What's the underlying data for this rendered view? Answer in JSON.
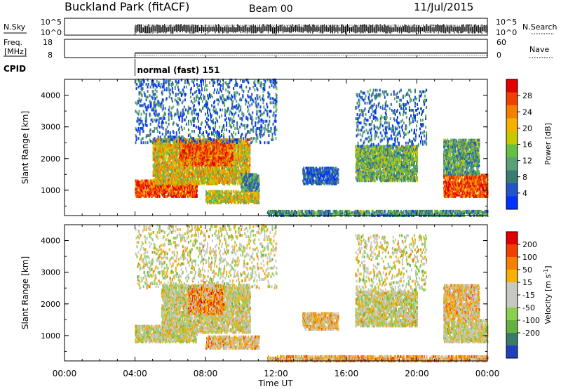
{
  "header": {
    "title": "Buckland Park (fitACF)",
    "beam": "Beam 00",
    "date": "11/Jul/2015"
  },
  "strips": {
    "nsky": {
      "label": "N.Sky",
      "ticks": [
        "10^5",
        "10^0"
      ],
      "right_label": "N.Search",
      "right_ticks": [
        "10^5",
        "10^0"
      ]
    },
    "freq": {
      "label_top": "Freq.",
      "label_bottom": "[MHz]",
      "ticks": [
        "18",
        "8"
      ],
      "right_label": "Nave",
      "right_ticks": [
        "60",
        "0"
      ],
      "freq_mhz": 10.5,
      "nave_level": 8
    },
    "cpid": {
      "label": "CPID",
      "text": "normal (fast) 151",
      "start_hour": 4
    }
  },
  "chart_data": [
    {
      "type": "heatmap",
      "name": "power",
      "ylabel": "Slant Range [km]",
      "ylim": [
        200,
        4500
      ],
      "yticks": [
        "1000",
        "2000",
        "3000",
        "4000"
      ],
      "xlim": [
        0,
        24
      ],
      "colorbar": {
        "label": "Power [dB]",
        "ticks": [
          "4",
          "8",
          "12",
          "16",
          "20",
          "24",
          "28"
        ],
        "range": [
          0,
          32
        ],
        "colors": [
          "#0033ff",
          "#2255c8",
          "#3a7a70",
          "#5aa07a",
          "#66c040",
          "#c8c800",
          "#f5b000",
          "#f58000",
          "#f04000",
          "#e00000"
        ]
      },
      "scatter_regions": [
        {
          "t0": 4.0,
          "t1": 7.5,
          "r0": 800,
          "r1": 1300,
          "level": 0.85
        },
        {
          "t0": 5.0,
          "t1": 10.5,
          "r0": 1200,
          "r1": 2600,
          "level": 0.6
        },
        {
          "t0": 6.5,
          "t1": 9.5,
          "r0": 1800,
          "r1": 2600,
          "level": 0.8
        },
        {
          "t0": 8.0,
          "t1": 11.0,
          "r0": 600,
          "r1": 1000,
          "level": 0.55
        },
        {
          "t0": 10.0,
          "t1": 11.0,
          "r0": 1000,
          "r1": 1500,
          "level": 0.3
        },
        {
          "t0": 4.0,
          "t1": 12.0,
          "r0": 2500,
          "r1": 4500,
          "level": 0.2
        },
        {
          "t0": 13.5,
          "t1": 15.5,
          "r0": 1200,
          "r1": 1700,
          "level": 0.15
        },
        {
          "t0": 16.5,
          "t1": 20.0,
          "r0": 1300,
          "r1": 2400,
          "level": 0.4
        },
        {
          "t0": 16.5,
          "t1": 20.5,
          "r0": 2400,
          "r1": 4200,
          "level": 0.2
        },
        {
          "t0": 21.5,
          "t1": 24.0,
          "r0": 800,
          "r1": 1500,
          "level": 0.85
        },
        {
          "t0": 21.5,
          "t1": 23.5,
          "r0": 1500,
          "r1": 2600,
          "level": 0.35
        },
        {
          "t0": 11.5,
          "t1": 24.0,
          "r0": 200,
          "r1": 350,
          "level": 0.3
        }
      ]
    },
    {
      "type": "heatmap",
      "name": "velocity",
      "ylabel": "Slant Range [km]",
      "ylim": [
        200,
        4500
      ],
      "yticks": [
        "1000",
        "2000",
        "3000",
        "4000"
      ],
      "xlim": [
        0,
        24
      ],
      "colorbar": {
        "label": "Velocity [m s",
        "label_sup": "-1",
        "label_end": "]",
        "ticks": [
          "200",
          "100",
          "50",
          "15",
          "-15",
          "-50",
          "-100",
          "-200"
        ],
        "colors": [
          "#2040c0",
          "#3a7a6a",
          "#66b040",
          "#8ad050",
          "#c8c8c0",
          "#c8c8c0",
          "#f5b000",
          "#f58000",
          "#f04000",
          "#e00000"
        ]
      },
      "scatter_regions": [
        {
          "t0": 4.0,
          "t1": 7.5,
          "r0": 800,
          "r1": 1300,
          "level": 0.5
        },
        {
          "t0": 5.5,
          "t1": 10.5,
          "r0": 1100,
          "r1": 2600,
          "level": 0.5
        },
        {
          "t0": 7.0,
          "t1": 9.0,
          "r0": 1700,
          "r1": 2600,
          "level": 0.7
        },
        {
          "t0": 8.0,
          "t1": 11.0,
          "r0": 600,
          "r1": 1000,
          "level": 0.6
        },
        {
          "t0": 4.0,
          "t1": 12.0,
          "r0": 2500,
          "r1": 4500,
          "level": 0.5
        },
        {
          "t0": 13.5,
          "t1": 15.5,
          "r0": 1200,
          "r1": 1700,
          "level": 0.6
        },
        {
          "t0": 16.5,
          "t1": 20.0,
          "r0": 1300,
          "r1": 2400,
          "level": 0.5
        },
        {
          "t0": 16.5,
          "t1": 20.5,
          "r0": 2400,
          "r1": 4200,
          "level": 0.5
        },
        {
          "t0": 21.5,
          "t1": 24.0,
          "r0": 800,
          "r1": 1500,
          "level": 0.5
        },
        {
          "t0": 21.5,
          "t1": 23.5,
          "r0": 1500,
          "r1": 2600,
          "level": 0.6
        },
        {
          "t0": 11.5,
          "t1": 24.0,
          "r0": 200,
          "r1": 350,
          "level": 0.65
        }
      ]
    }
  ],
  "x_axis": {
    "ticks": [
      "00:00",
      "04:00",
      "08:00",
      "12:00",
      "16:00",
      "20:00",
      "00:00"
    ],
    "label": "Time UT"
  }
}
